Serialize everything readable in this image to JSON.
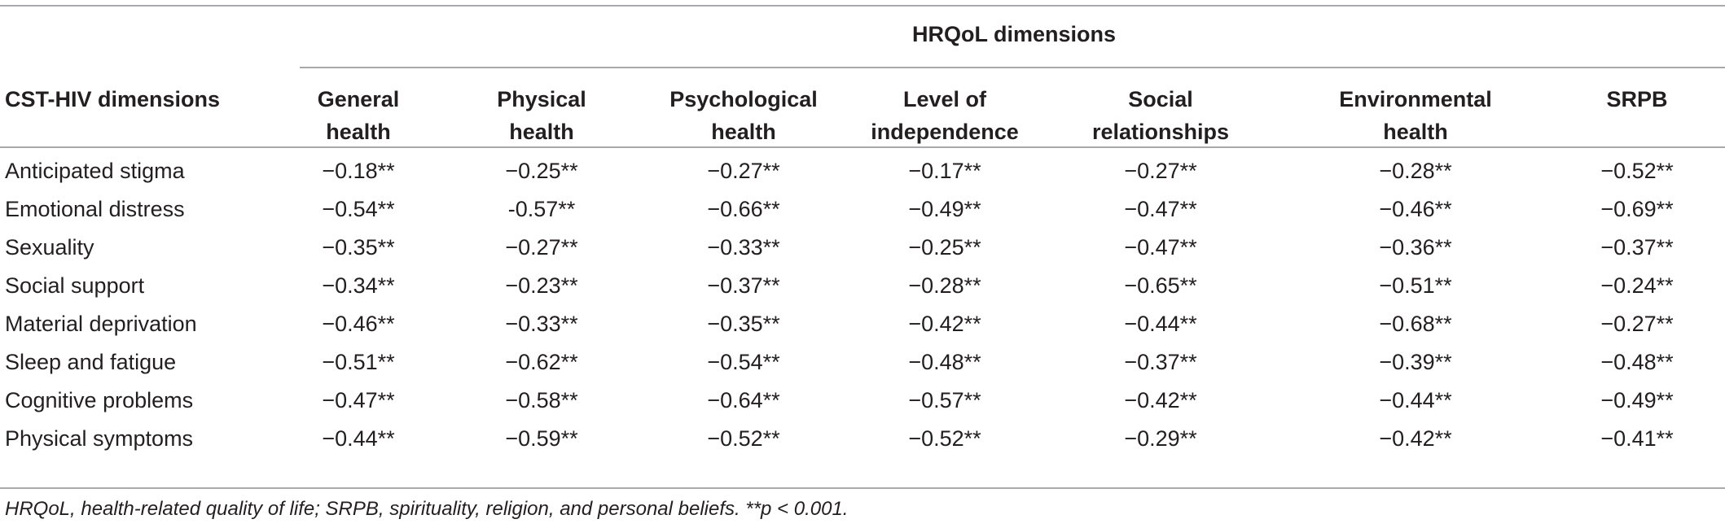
{
  "table": {
    "group_header": "HRQoL dimensions",
    "stub_header": "CST-HIV dimensions",
    "columns": [
      {
        "line1": "General",
        "line2": "health"
      },
      {
        "line1": "Physical",
        "line2": "health"
      },
      {
        "line1": "Psychological",
        "line2": "health"
      },
      {
        "line1": "Level of",
        "line2": "independence"
      },
      {
        "line1": "Social",
        "line2": "relationships"
      },
      {
        "line1": "Environmental",
        "line2": "health"
      },
      {
        "line1": "SRPB",
        "line2": ""
      }
    ],
    "rows": [
      {
        "label": "Anticipated stigma",
        "values": [
          "−0.18**",
          "−0.25**",
          "−0.27**",
          "−0.17**",
          "−0.27**",
          "−0.28**",
          "−0.52**"
        ]
      },
      {
        "label": "Emotional distress",
        "values": [
          "−0.54**",
          "-0.57**",
          "−0.66**",
          "−0.49**",
          "−0.47**",
          "−0.46**",
          "−0.69**"
        ]
      },
      {
        "label": "Sexuality",
        "values": [
          "−0.35**",
          "−0.27**",
          "−0.33**",
          "−0.25**",
          "−0.47**",
          "−0.36**",
          "−0.37**"
        ]
      },
      {
        "label": "Social support",
        "values": [
          "−0.34**",
          "−0.23**",
          "−0.37**",
          "−0.28**",
          "−0.65**",
          "−0.51**",
          "−0.24**"
        ]
      },
      {
        "label": "Material deprivation",
        "values": [
          "−0.46**",
          "−0.33**",
          "−0.35**",
          "−0.42**",
          "−0.44**",
          "−0.68**",
          "−0.27**"
        ]
      },
      {
        "label": "Sleep and fatigue",
        "values": [
          "−0.51**",
          "−0.62**",
          "−0.54**",
          "−0.48**",
          "−0.37**",
          "−0.39**",
          "−0.48**"
        ]
      },
      {
        "label": "Cognitive problems",
        "values": [
          "−0.47**",
          "−0.58**",
          "−0.64**",
          "−0.57**",
          "−0.42**",
          "−0.44**",
          "−0.49**"
        ]
      },
      {
        "label": "Physical symptoms",
        "values": [
          "−0.44**",
          "−0.59**",
          "−0.52**",
          "−0.52**",
          "−0.29**",
          "−0.42**",
          "−0.41**"
        ]
      }
    ],
    "footnote": "HRQoL, health-related quality of life; SRPB, spirituality, religion, and personal beliefs. **p < 0.001."
  }
}
